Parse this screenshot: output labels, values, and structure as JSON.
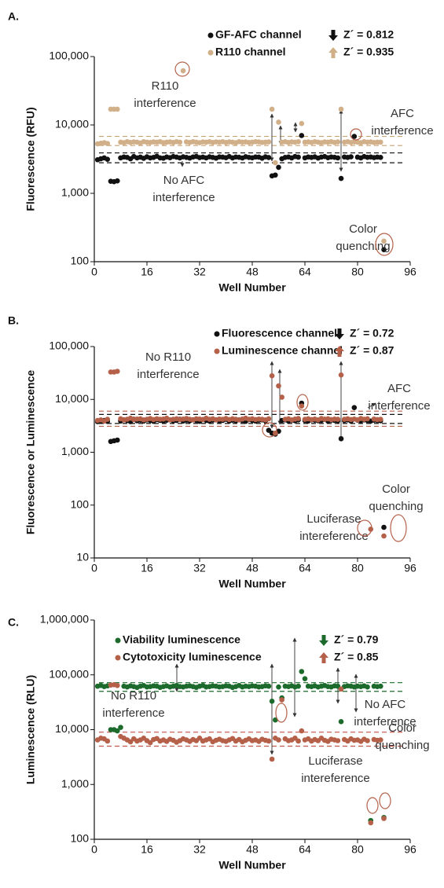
{
  "chart_data": [
    {
      "type": "scatter",
      "panel_label": "A.",
      "x_label": "Well Number",
      "y_label": "Fluorescence (RFU)",
      "log_y": true,
      "xlim": [
        0,
        96
      ],
      "xticks": [
        0,
        16,
        32,
        48,
        64,
        80,
        96
      ],
      "ylim": [
        100,
        100000
      ],
      "yticks": [
        100,
        {
          "value": 1000,
          "label": "1,000"
        },
        {
          "value": 10000,
          "label": "10,000"
        },
        {
          "value": 100000,
          "label": "100,000"
        }
      ],
      "x": [
        1,
        2,
        3,
        4,
        5,
        6,
        7,
        8,
        9,
        10,
        11,
        12,
        13,
        14,
        15,
        16,
        17,
        18,
        19,
        20,
        21,
        22,
        23,
        24,
        25,
        26,
        27,
        28,
        29,
        30,
        31,
        32,
        33,
        34,
        35,
        36,
        37,
        38,
        39,
        40,
        41,
        42,
        43,
        44,
        45,
        46,
        47,
        48,
        49,
        50,
        51,
        52,
        53,
        54,
        55,
        56,
        57,
        58,
        59,
        60,
        61,
        62,
        63,
        64,
        65,
        66,
        67,
        68,
        69,
        70,
        71,
        72,
        73,
        74,
        75,
        76,
        77,
        78,
        79,
        80,
        81,
        82,
        83,
        84,
        85,
        86,
        87,
        88
      ],
      "series": [
        {
          "name": "GF-AFC channel",
          "z_label": "Z´ = 0.812",
          "color": "#111111",
          "values": [
            3100,
            3200,
            3300,
            3150,
            1500,
            1480,
            1520,
            3300,
            3400,
            3350,
            3200,
            3450,
            3300,
            3380,
            3250,
            3420,
            3300,
            3350,
            3480,
            3300,
            3260,
            3400,
            3320,
            3450,
            3380,
            3300,
            3420,
            3350,
            3280,
            3400,
            3460,
            3330,
            3390,
            3300,
            3420,
            3350,
            3270,
            3410,
            3380,
            3320,
            3450,
            3300,
            3400,
            3360,
            3290,
            3430,
            3350,
            3310,
            3400,
            3380,
            3260,
            3420,
            3340,
            1800,
            1850,
            2400,
            3200,
            3350,
            3400,
            3300,
            3450,
            3380,
            7000,
            3300,
            3400,
            3350,
            3420,
            3280,
            3390,
            3450,
            3320,
            3400,
            3360,
            3300,
            1650,
            3400,
            3350,
            3420,
            6800,
            3380,
            3300,
            3450,
            3360,
            3400,
            3330,
            3390,
            3350,
            150
          ]
        },
        {
          "name": "R110 channel",
          "z_label": "Z´ = 0.935",
          "color": "#d1b089",
          "values": [
            5300,
            5400,
            5500,
            5350,
            17000,
            17000,
            17000,
            5600,
            5500,
            5700,
            5550,
            5650,
            5600,
            5450,
            5700,
            5600,
            5550,
            5650,
            5600,
            5700,
            5500,
            5600,
            5650,
            5550,
            5700,
            5600,
            62000,
            5650,
            5550,
            5700,
            5600,
            5500,
            5650,
            5600,
            5700,
            5550,
            5650,
            5600,
            5700,
            5550,
            5650,
            5600,
            5500,
            5700,
            5600,
            5650,
            5550,
            5600,
            5700,
            5650,
            5550,
            5600,
            5650,
            17000,
            2800,
            11000,
            5600,
            5700,
            5550,
            5650,
            5600,
            5700,
            10500,
            5600,
            5650,
            5550,
            5700,
            5600,
            5500,
            5650,
            5600,
            5700,
            5550,
            5650,
            17000,
            5600,
            5700,
            5550,
            5650,
            5600,
            5500,
            5700,
            5600,
            5650,
            5550,
            5600,
            5600,
            200
          ]
        }
      ],
      "reference_lines": [
        {
          "value": 3900,
          "color": "#111111"
        },
        {
          "value": 2800,
          "color": "#111111"
        },
        {
          "value": 6800,
          "color": "#c9a475"
        },
        {
          "value": 5000,
          "color": "#c9a475"
        }
      ],
      "annotations": [
        {
          "lines": [
            "R110",
            "interference"
          ]
        },
        {
          "lines": [
            "No AFC",
            "interference"
          ]
        },
        {
          "lines": [
            "AFC",
            "interference"
          ]
        },
        {
          "lines": [
            "Color",
            "quenching"
          ]
        }
      ]
    },
    {
      "type": "scatter",
      "panel_label": "B.",
      "x_label": "Well Number",
      "y_label": "Fluorescence or Luminescence",
      "log_y": true,
      "xlim": [
        0,
        96
      ],
      "xticks": [
        0,
        16,
        32,
        48,
        64,
        80,
        96
      ],
      "ylim": [
        10,
        100000
      ],
      "yticks": [
        10,
        100,
        {
          "value": 1000,
          "label": "1,000"
        },
        {
          "value": 10000,
          "label": "10,000"
        },
        {
          "value": 100000,
          "label": "100,000"
        }
      ],
      "x": [
        1,
        2,
        3,
        4,
        5,
        6,
        7,
        8,
        9,
        10,
        11,
        12,
        13,
        14,
        15,
        16,
        17,
        18,
        19,
        20,
        21,
        22,
        23,
        24,
        25,
        26,
        27,
        28,
        29,
        30,
        31,
        32,
        33,
        34,
        35,
        36,
        37,
        38,
        39,
        40,
        41,
        42,
        43,
        44,
        45,
        46,
        47,
        48,
        49,
        50,
        51,
        52,
        53,
        54,
        55,
        56,
        57,
        58,
        59,
        60,
        61,
        62,
        63,
        64,
        65,
        66,
        67,
        68,
        69,
        70,
        71,
        72,
        73,
        74,
        75,
        76,
        77,
        78,
        79,
        80,
        81,
        82,
        83,
        84,
        85,
        86,
        87,
        88
      ],
      "series": [
        {
          "name": "Fluorescence channel",
          "z_label": "Z´ = 0.72",
          "color": "#111111",
          "values": [
            3800,
            3900,
            4000,
            3850,
            1600,
            1650,
            1700,
            3900,
            4100,
            4000,
            3800,
            4200,
            3950,
            4050,
            3900,
            4100,
            4000,
            3850,
            4150,
            4000,
            3900,
            4050,
            4100,
            3950,
            4000,
            4200,
            3900,
            4050,
            3950,
            4100,
            4000,
            3850,
            4150,
            4000,
            3900,
            4050,
            4100,
            3950,
            4000,
            4200,
            3900,
            4050,
            3950,
            4100,
            4000,
            3850,
            4150,
            4000,
            3900,
            4050,
            4100,
            3950,
            2600,
            2300,
            2200,
            2500,
            4000,
            4100,
            3900,
            4050,
            3950,
            4100,
            8500,
            4000,
            3900,
            4100,
            4050,
            3950,
            4000,
            4200,
            3900,
            4050,
            4000,
            3950,
            1800,
            4000,
            4100,
            3900,
            7000,
            4050,
            3950,
            4100,
            4000,
            3900,
            4050,
            4000,
            3950,
            38
          ]
        },
        {
          "name": "Luminescence channel",
          "z_label": "Z´ = 0.87",
          "color": "#b5614a",
          "values": [
            4000,
            4100,
            3900,
            4200,
            33000,
            33000,
            34000,
            4300,
            4100,
            4200,
            4400,
            4150,
            4250,
            4300,
            4100,
            4200,
            4350,
            4150,
            4300,
            4200,
            4250,
            4400,
            4100,
            4200,
            4300,
            4150,
            4250,
            4350,
            4200,
            4100,
            4300,
            4250,
            4150,
            4400,
            4200,
            4300,
            4100,
            4250,
            4200,
            4350,
            4150,
            4300,
            4200,
            4100,
            4250,
            4400,
            4200,
            4300,
            4150,
            4250,
            4200,
            4100,
            4300,
            28000,
            2300,
            18000,
            11000,
            4200,
            4300,
            4100,
            4250,
            4350,
            7500,
            4200,
            4300,
            4150,
            4250,
            4100,
            4350,
            4200,
            4300,
            4150,
            4250,
            4200,
            29000,
            4200,
            4300,
            4150,
            4250,
            4100,
            4350,
            4200,
            4300,
            35,
            4250,
            4150,
            4200,
            26
          ]
        }
      ],
      "reference_lines": [
        {
          "value": 6000,
          "color": "#b5614a"
        },
        {
          "value": 3100,
          "color": "#b5614a"
        },
        {
          "value": 5200,
          "color": "#111111"
        },
        {
          "value": 3500,
          "color": "#111111"
        }
      ],
      "annotations": [
        {
          "lines": [
            "No R110",
            "interference"
          ]
        },
        {
          "lines": [
            "AFC",
            "interference"
          ]
        },
        {
          "lines": [
            "Luciferase",
            "intereference"
          ]
        },
        {
          "lines": [
            "Color",
            "quenching"
          ]
        }
      ]
    },
    {
      "type": "scatter",
      "panel_label": "C.",
      "x_label": "Well Number",
      "y_label": "Luminescence (RLU)",
      "log_y": true,
      "xlim": [
        0,
        96
      ],
      "xticks": [
        0,
        16,
        32,
        48,
        64,
        80,
        96
      ],
      "ylim": [
        100,
        1000000
      ],
      "yticks": [
        100,
        {
          "value": 1000,
          "label": "1,000"
        },
        {
          "value": 10000,
          "label": "10,000"
        },
        {
          "value": 100000,
          "label": "100,000"
        },
        {
          "value": 1000000,
          "label": "1,000,000"
        }
      ],
      "x": [
        1,
        2,
        3,
        4,
        5,
        6,
        7,
        8,
        9,
        10,
        11,
        12,
        13,
        14,
        15,
        16,
        17,
        18,
        19,
        20,
        21,
        22,
        23,
        24,
        25,
        26,
        27,
        28,
        29,
        30,
        31,
        32,
        33,
        34,
        35,
        36,
        37,
        38,
        39,
        40,
        41,
        42,
        43,
        44,
        45,
        46,
        47,
        48,
        49,
        50,
        51,
        52,
        53,
        54,
        55,
        56,
        57,
        58,
        59,
        60,
        61,
        62,
        63,
        64,
        65,
        66,
        67,
        68,
        69,
        70,
        71,
        72,
        73,
        74,
        75,
        76,
        77,
        78,
        79,
        80,
        81,
        82,
        83,
        84,
        85,
        86,
        87,
        88
      ],
      "series": [
        {
          "name": "Viability luminescence",
          "z_label": "Z´ = 0.79",
          "color": "#1d6b2c",
          "values": [
            62000,
            64000,
            61000,
            63000,
            10000,
            10000,
            9500,
            11000,
            62000,
            60000,
            63000,
            61000,
            59000,
            62000,
            64000,
            60000,
            61000,
            63000,
            62000,
            59000,
            61000,
            63000,
            60000,
            62000,
            64000,
            61000,
            60000,
            62000,
            63000,
            61000,
            59000,
            62000,
            64000,
            60000,
            61000,
            63000,
            62000,
            60000,
            61000,
            63000,
            62000,
            59000,
            61000,
            64000,
            60000,
            62000,
            61000,
            63000,
            62000,
            60000,
            61000,
            63000,
            62000,
            33000,
            15000,
            60000,
            38000,
            62000,
            61000,
            63000,
            60000,
            62000,
            115000,
            85000,
            62000,
            61000,
            63000,
            60000,
            62000,
            64000,
            61000,
            60000,
            63000,
            62000,
            14000,
            61000,
            63000,
            62000,
            60000,
            62000,
            61000,
            63000,
            60000,
            220,
            62000,
            61000,
            62000,
            250
          ]
        },
        {
          "name": "Cytotoxicity luminescence",
          "z_label": "Z´ = 0.85",
          "color": "#b5614a",
          "values": [
            6500,
            7000,
            6800,
            6200,
            65000,
            66000,
            64000,
            7500,
            7000,
            6500,
            6000,
            6800,
            6200,
            6500,
            7000,
            6300,
            5800,
            6600,
            6900,
            6200,
            6500,
            6100,
            6700,
            6400,
            5900,
            6300,
            6800,
            6500,
            6100,
            6600,
            6300,
            7000,
            6200,
            6500,
            6800,
            6000,
            6400,
            6700,
            6300,
            6100,
            6500,
            6900,
            6200,
            6600,
            6000,
            6400,
            6800,
            6300,
            6500,
            6100,
            6700,
            6400,
            6200,
            2900,
            7000,
            6500,
            35000,
            6800,
            6300,
            6500,
            7000,
            6200,
            9500,
            6500,
            6800,
            6200,
            6600,
            6300,
            7000,
            6400,
            6100,
            6700,
            6500,
            6300,
            55000,
            6600,
            6200,
            6800,
            6400,
            6500,
            6100,
            6700,
            6300,
            200,
            6600,
            6400,
            6500,
            240
          ]
        }
      ],
      "reference_lines": [
        {
          "value": 72000,
          "color": "#1d6b2c"
        },
        {
          "value": 50000,
          "color": "#1d6b2c"
        },
        {
          "value": 9000,
          "color": "#c0554a"
        },
        {
          "value": 5000,
          "color": "#c0554a"
        }
      ],
      "annotations": [
        {
          "lines": [
            "No R110",
            "interference"
          ]
        },
        {
          "lines": [
            "No AFC",
            "interference"
          ]
        },
        {
          "lines": [
            "Luciferase",
            "intereference"
          ]
        },
        {
          "lines": [
            "Color",
            "quenching"
          ]
        }
      ]
    }
  ]
}
